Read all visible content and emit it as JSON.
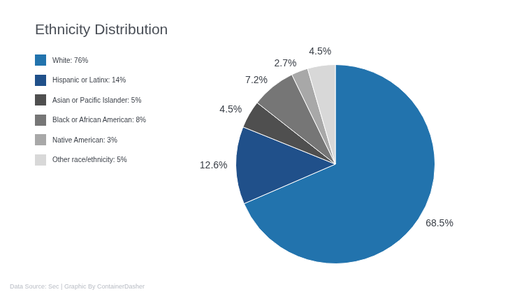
{
  "chart_data": {
    "type": "pie",
    "title": "Ethnicity Distribution",
    "categories": [
      "White: 76%",
      "Hispanic or Latinx: 14%",
      "Asian or Pacific Islander: 5%",
      "Black or African American: 8%",
      "Native American: 3%",
      "Other race/ethnicity: 5%"
    ],
    "values": [
      68.5,
      12.6,
      4.5,
      7.2,
      2.7,
      4.5
    ],
    "value_labels": [
      "68.5%",
      "12.6%",
      "4.5%",
      "7.2%",
      "2.7%",
      "4.5%"
    ],
    "colors": [
      "#2273ad",
      "#20508a",
      "#4f4f4f",
      "#767676",
      "#a8a8a8",
      "#d8d8d8"
    ],
    "data_labels": true,
    "legend": "top-left",
    "source": "Data Source: Sec | Graphic By ContainerDasher"
  }
}
